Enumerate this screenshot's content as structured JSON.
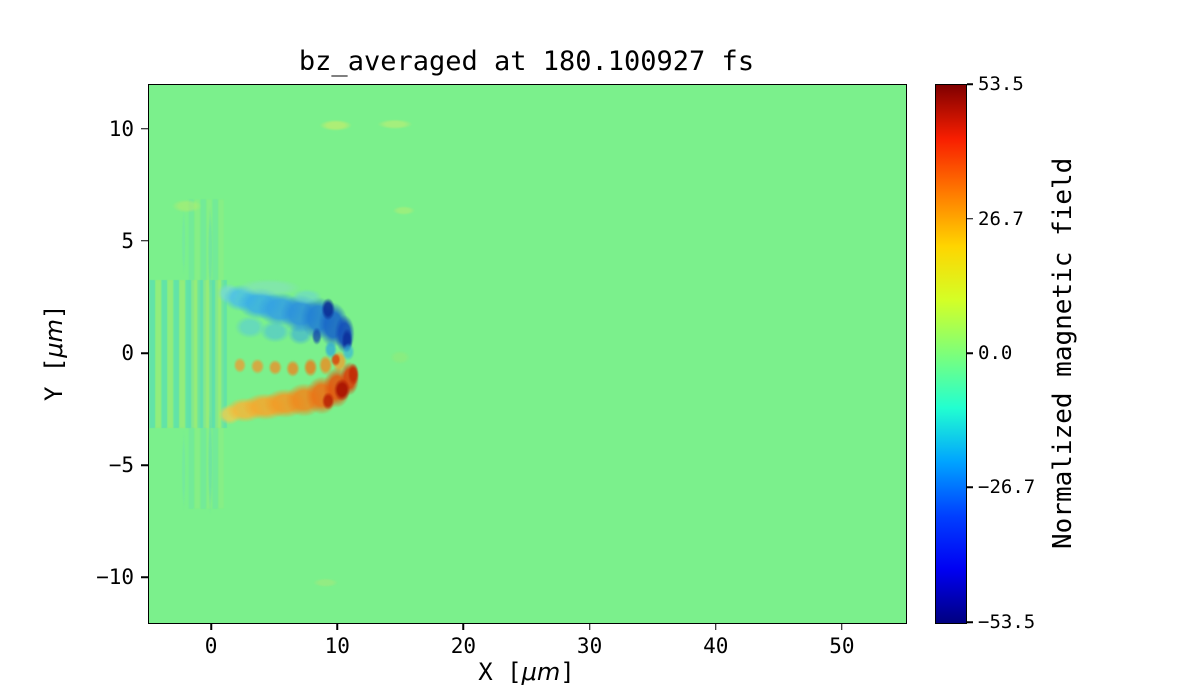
{
  "figure": {
    "background": "#ffffff"
  },
  "chart_data": {
    "type": "heatmap",
    "title": "bz_averaged at 180.100927 fs",
    "xlabel": "X [μm]",
    "xlabel_parts": [
      "X [",
      "μm",
      "]"
    ],
    "ylabel": "Y [μm]",
    "ylabel_parts": [
      "Y [",
      "μm",
      "]"
    ],
    "xlim": [
      -5,
      55
    ],
    "ylim": [
      -12,
      12
    ],
    "x_ticks": {
      "values": [
        0,
        10,
        20,
        30,
        40,
        50
      ],
      "labels": [
        "0",
        "10",
        "20",
        "30",
        "40",
        "50"
      ]
    },
    "y_ticks": {
      "values": [
        -10,
        -5,
        0,
        5,
        10
      ],
      "labels": [
        "−10",
        "−5",
        "0",
        "5",
        "10"
      ]
    },
    "grid": false,
    "legend": false,
    "background_value": 0.0,
    "background_color": "#7bf08c",
    "colorbar": {
      "label": "Normalized magnetic field",
      "vmin": -53.5,
      "vmax": 53.5,
      "ticks": {
        "values": [
          53.5,
          26.7,
          0.0,
          -26.7,
          -53.5
        ],
        "labels": [
          "53.5",
          "26.7",
          "0.0",
          "−26.7",
          "−53.5"
        ]
      },
      "colormap": "jet",
      "gradient_stops": [
        {
          "pos": 0.0,
          "color": "#000080"
        },
        {
          "pos": 0.1,
          "color": "#0000f3"
        },
        {
          "pos": 0.2,
          "color": "#0040ff"
        },
        {
          "pos": 0.3,
          "color": "#00a4ff"
        },
        {
          "pos": 0.4,
          "color": "#22ffd0"
        },
        {
          "pos": 0.5,
          "color": "#7dff7a"
        },
        {
          "pos": 0.6,
          "color": "#d4ff26"
        },
        {
          "pos": 0.7,
          "color": "#ffd500"
        },
        {
          "pos": 0.8,
          "color": "#ff7a00"
        },
        {
          "pos": 0.9,
          "color": "#f81e00"
        },
        {
          "pos": 1.0,
          "color": "#800000"
        }
      ]
    },
    "features": {
      "stripes": [
        {
          "x0": -4.95,
          "x1": 1.0,
          "period": 0.95,
          "width": 0.42,
          "ymin": -3.3,
          "ymax": 3.3,
          "colors": [
            "#49d6c3",
            "#a9ea6c"
          ],
          "alpha": 0.5
        },
        {
          "x0": -1.85,
          "x1": 0.95,
          "period": 0.95,
          "width": 0.4,
          "ymin": -6.9,
          "ymax": 6.9,
          "colors": [
            "#55d8c6",
            "#aeeb70"
          ],
          "alpha": 0.22
        }
      ],
      "blobs": [
        [
          -0.15,
          -4.8,
          0.18,
          2.4,
          "#55d8c0",
          0.45
        ],
        [
          -0.15,
          4.6,
          0.18,
          2.0,
          "#55d8c0",
          0.4
        ],
        [
          -2.25,
          -5.2,
          0.15,
          1.8,
          "#66dcc6",
          0.3
        ],
        [
          -2.25,
          5.0,
          0.15,
          1.5,
          "#66dcc6",
          0.28
        ],
        [
          -2.0,
          6.6,
          1.2,
          0.3,
          "#c2ec66",
          0.45
        ],
        [
          9.8,
          10.2,
          1.3,
          0.25,
          "#c8ee6a",
          0.65
        ],
        [
          14.5,
          10.25,
          1.4,
          0.22,
          "#cdee6e",
          0.5
        ],
        [
          15.2,
          6.4,
          0.9,
          0.2,
          "#c8ee6a",
          0.4
        ],
        [
          9.0,
          -10.2,
          1.0,
          0.2,
          "#b0e878",
          0.45
        ],
        [
          14.9,
          -0.15,
          0.8,
          0.3,
          "#a2e86e",
          0.35
        ],
        [
          2.2,
          -0.5,
          0.5,
          0.35,
          "#f09a30",
          0.75
        ],
        [
          3.6,
          -0.55,
          0.55,
          0.35,
          "#ef952c",
          0.75
        ],
        [
          5.0,
          -0.6,
          0.55,
          0.35,
          "#ee8f28",
          0.78
        ],
        [
          6.4,
          -0.65,
          0.55,
          0.38,
          "#ec8822",
          0.8
        ],
        [
          7.8,
          -0.6,
          0.55,
          0.42,
          "#ea7d1c",
          0.82
        ],
        [
          9.0,
          -0.5,
          0.55,
          0.45,
          "#ee8c20",
          0.8
        ],
        [
          10.1,
          -0.35,
          0.6,
          0.5,
          "#f0a130",
          0.78
        ],
        [
          1.4,
          -2.7,
          0.9,
          0.45,
          "#e8cf52",
          0.85
        ],
        [
          2.6,
          -2.5,
          1.5,
          0.55,
          "#f2b93c",
          0.88
        ],
        [
          4.2,
          -2.35,
          1.8,
          0.6,
          "#f3aa30",
          0.9
        ],
        [
          5.8,
          -2.2,
          1.7,
          0.65,
          "#f19c28",
          0.9
        ],
        [
          7.3,
          -2.05,
          1.5,
          0.75,
          "#ee8c20",
          0.9
        ],
        [
          8.7,
          -1.85,
          1.3,
          0.85,
          "#ea7518",
          0.92
        ],
        [
          9.9,
          -1.5,
          1.1,
          0.9,
          "#e25a10",
          0.92
        ],
        [
          10.9,
          -1.1,
          0.75,
          0.75,
          "#d8430c",
          0.92
        ],
        [
          10.3,
          -1.6,
          0.65,
          0.5,
          "#aa1402",
          0.95
        ],
        [
          11.2,
          -0.9,
          0.45,
          0.5,
          "#c22a06",
          0.9
        ],
        [
          9.2,
          -2.1,
          0.5,
          0.4,
          "#b81f04",
          0.85
        ],
        [
          9.8,
          -0.25,
          0.4,
          0.3,
          "#d8400a",
          0.8
        ],
        [
          3.0,
          1.2,
          1.2,
          0.5,
          "#55c8e0",
          0.55
        ],
        [
          5.0,
          1.0,
          1.2,
          0.5,
          "#48bce2",
          0.55
        ],
        [
          7.0,
          0.9,
          1.0,
          0.5,
          "#3aaade",
          0.6
        ],
        [
          1.3,
          2.7,
          0.9,
          0.45,
          "#7adbd0",
          0.8
        ],
        [
          2.3,
          2.5,
          1.4,
          0.6,
          "#4cc0e6",
          0.85
        ],
        [
          3.8,
          2.25,
          1.8,
          0.7,
          "#3aaee6",
          0.88
        ],
        [
          5.4,
          2.0,
          1.8,
          0.75,
          "#35a2e2",
          0.9
        ],
        [
          7.0,
          1.8,
          1.6,
          0.85,
          "#2d92dc",
          0.9
        ],
        [
          8.4,
          1.6,
          1.4,
          0.95,
          "#2381d4",
          0.9
        ],
        [
          9.6,
          1.3,
          1.2,
          1.0,
          "#1b6ac8",
          0.92
        ],
        [
          10.5,
          0.9,
          0.8,
          0.85,
          "#1550ba",
          0.92
        ],
        [
          4.5,
          2.95,
          2.6,
          0.4,
          "#86e0c2",
          0.55
        ],
        [
          7.5,
          2.55,
          1.2,
          0.35,
          "#6ad4d6",
          0.55
        ],
        [
          9.2,
          2.0,
          0.55,
          0.5,
          "#0b2e96",
          0.9
        ],
        [
          10.7,
          0.6,
          0.45,
          0.55,
          "#0c2f9c",
          0.9
        ],
        [
          8.3,
          0.8,
          0.4,
          0.4,
          "#1244aa",
          0.75
        ],
        [
          9.4,
          0.2,
          0.5,
          0.4,
          "#2fa8da",
          0.75
        ],
        [
          10.8,
          0.1,
          0.5,
          0.4,
          "#35b2de",
          0.65
        ]
      ]
    }
  }
}
